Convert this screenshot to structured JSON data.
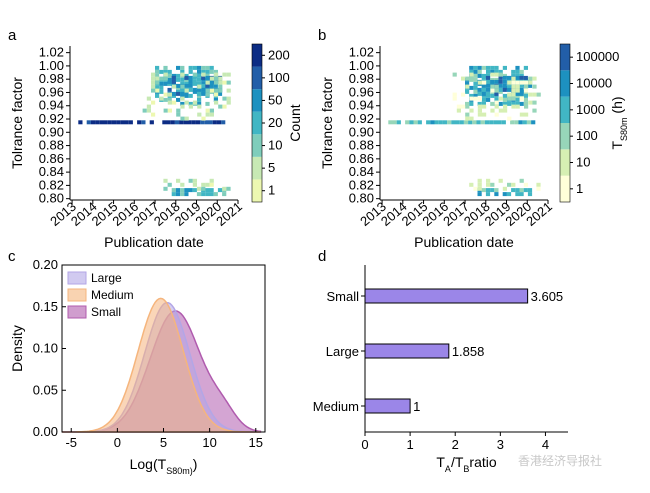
{
  "colors": {
    "heat_a": [
      "#edf8b1",
      "#c7e9b4",
      "#7fcdbb",
      "#41b6c4",
      "#1d91c0",
      "#225ea8",
      "#0c2c84"
    ],
    "heat_b": [
      "#ffffd9",
      "#d6efb3",
      "#97d6b9",
      "#41b6c4",
      "#1d91c0",
      "#225ea8"
    ],
    "large": "#b3a6e6",
    "medium": "#f5b57d",
    "small": "#b05bae",
    "bar": "#9b86e8"
  },
  "chart_data": [
    {
      "panel": "a",
      "type": "heatmap",
      "xlabel": "Publication date",
      "ylabel": "Tolrance factor",
      "xticks": [
        "2013",
        "2014",
        "2015",
        "2016",
        "2017",
        "2018",
        "2019",
        "2020",
        "2021"
      ],
      "yticks": [
        "0.80",
        "0.82",
        "0.84",
        "0.86",
        "0.88",
        "0.90",
        "0.92",
        "0.94",
        "0.96",
        "0.98",
        "1.00",
        "1.02"
      ],
      "colorbar": {
        "label": "Count",
        "ticks": [
          "1",
          "5",
          "10",
          "20",
          "50",
          "100",
          "200"
        ]
      },
      "clusters": [
        {
          "x": [
            2013.3,
            2020.2
          ],
          "y": [
            0.912,
            0.918
          ],
          "level": 6,
          "density": 0.9
        },
        {
          "x": [
            2017.0,
            2020.0
          ],
          "y": [
            0.94,
            1.0
          ],
          "level": 3,
          "density": 0.6
        },
        {
          "x": [
            2017.6,
            2020.2
          ],
          "y": [
            0.955,
            0.985
          ],
          "level": 4,
          "density": 0.7
        },
        {
          "x": [
            2016.4,
            2020.6
          ],
          "y": [
            0.92,
            0.99
          ],
          "level": 1,
          "density": 0.25
        },
        {
          "x": [
            2017.6,
            2020.4
          ],
          "y": [
            0.806,
            0.816
          ],
          "level": 3,
          "density": 0.8
        },
        {
          "x": [
            2017.2,
            2020.6
          ],
          "y": [
            0.816,
            0.83
          ],
          "level": 1,
          "density": 0.35
        }
      ]
    },
    {
      "panel": "b",
      "type": "heatmap",
      "xlabel": "Publication date",
      "ylabel": "Tolrance factor",
      "xticks": [
        "2013",
        "2014",
        "2015",
        "2016",
        "2017",
        "2018",
        "2019",
        "2020",
        "2021"
      ],
      "yticks": [
        "0.80",
        "0.82",
        "0.84",
        "0.86",
        "0.88",
        "0.90",
        "0.92",
        "0.94",
        "0.96",
        "0.98",
        "1.00",
        "1.02"
      ],
      "colorbar": {
        "label": "T_S80m (h)",
        "ticks": [
          "1",
          "10",
          "100",
          "1000",
          "10000",
          "100000"
        ]
      },
      "clusters": [
        {
          "x": [
            2013.3,
            2020.2
          ],
          "y": [
            0.912,
            0.918
          ],
          "level": 3,
          "density": 0.85
        },
        {
          "x": [
            2017.0,
            2020.0
          ],
          "y": [
            0.94,
            1.0
          ],
          "level": 3,
          "density": 0.65
        },
        {
          "x": [
            2017.6,
            2020.2
          ],
          "y": [
            0.955,
            0.985
          ],
          "level": 4,
          "density": 0.7
        },
        {
          "x": [
            2016.4,
            2020.6
          ],
          "y": [
            0.92,
            0.99
          ],
          "level": 1,
          "density": 0.3
        },
        {
          "x": [
            2017.6,
            2020.4
          ],
          "y": [
            0.806,
            0.816
          ],
          "level": 3,
          "density": 0.8
        },
        {
          "x": [
            2017.2,
            2020.6
          ],
          "y": [
            0.816,
            0.83
          ],
          "level": 1,
          "density": 0.35
        }
      ]
    },
    {
      "panel": "c",
      "type": "area",
      "xlabel": "Log(T_S80m)",
      "ylabel": "Density",
      "xlim": [
        -6,
        16
      ],
      "ylim": [
        0,
        0.2
      ],
      "xticks": [
        -5,
        0,
        5,
        10,
        15
      ],
      "yticks": [
        "0.00",
        "0.05",
        "0.10",
        "0.15",
        "0.20"
      ],
      "series": [
        {
          "name": "Large",
          "mean": 5.4,
          "sd": 2.45,
          "peak": 0.155
        },
        {
          "name": "Medium",
          "mean": 4.7,
          "sd": 2.45,
          "peak": 0.16
        },
        {
          "name": "Small",
          "mean": 6.3,
          "sd": 2.75,
          "peak": 0.145
        }
      ]
    },
    {
      "panel": "d",
      "type": "bar",
      "orientation": "horizontal",
      "xlabel": "T_A/T_B_ratio",
      "xlim": [
        0,
        4.5
      ],
      "xticks": [
        0,
        1,
        2,
        3,
        4
      ],
      "categories": [
        "Small",
        "Large",
        "Medium"
      ],
      "values": [
        3.605,
        1.858,
        1
      ],
      "value_labels": [
        "3.605",
        "1.858",
        "1"
      ]
    }
  ],
  "watermark": "香港经济导报社"
}
